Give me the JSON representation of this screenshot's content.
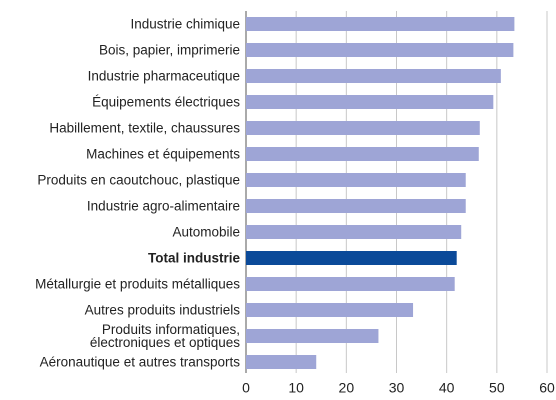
{
  "chart_data": {
    "type": "barh",
    "categories": [
      "Industrie chimique",
      "Bois, papier, imprimerie",
      "Industrie pharmaceutique",
      "Équipements électriques",
      "Habillement, textile, chaussures",
      "Machines et équipements",
      "Produits en caoutchouc, plastique",
      "Industrie agro-alimentaire",
      "Automobile",
      "Total industrie",
      "Métallurgie et produits métalliques",
      "Autres produits industriels",
      "Produits informatiques,\nélectroniques et optiques",
      "Aéronautique et autres transports"
    ],
    "values": [
      53.5,
      53.3,
      50.8,
      49.3,
      46.6,
      46.4,
      43.8,
      43.8,
      42.9,
      42.0,
      41.6,
      33.3,
      26.4,
      14.0
    ],
    "color": "#9ea5d6",
    "highlight": {
      "index": 9,
      "color": "#0b4a99"
    },
    "xlim": [
      0,
      60
    ],
    "xticks": [
      0,
      10,
      20,
      30,
      40,
      50,
      60
    ],
    "grid": true
  }
}
